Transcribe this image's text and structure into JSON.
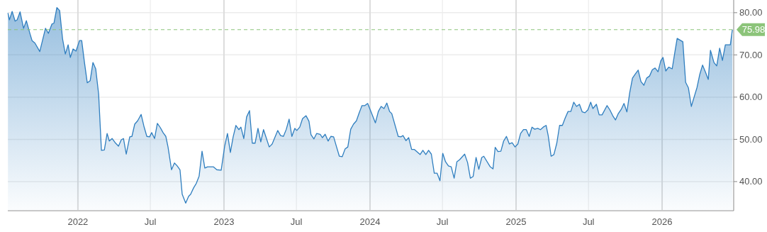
{
  "chart_data": {
    "type": "area",
    "series": [
      {
        "color": "#2f7ebf",
        "x": [
          2021.521,
          2021.531,
          2021.55,
          2021.57,
          2021.584,
          2021.604,
          2021.628,
          2021.647,
          2021.672,
          2021.686,
          2021.706,
          2021.739,
          2021.778,
          2021.798,
          2021.822,
          2021.836,
          2021.856,
          2021.875,
          2021.895,
          2021.914,
          2021.933,
          2021.948,
          2021.967,
          2021.987,
          2022.011,
          2022.026,
          2022.045,
          2022.064,
          2022.084,
          2022.103,
          2022.122,
          2022.142,
          2022.161,
          2022.181,
          2022.2,
          2022.215,
          2022.234,
          2022.258,
          2022.278,
          2022.297,
          2022.312,
          2022.331,
          2022.355,
          2022.37,
          2022.389,
          2022.409,
          2022.433,
          2022.452,
          2022.472,
          2022.491,
          2022.505,
          2022.525,
          2022.544,
          2022.564,
          2022.583,
          2022.602,
          2022.617,
          2022.641,
          2022.661,
          2022.68,
          2022.699,
          2022.714,
          2022.738,
          2022.758,
          2022.772,
          2022.792,
          2022.811,
          2022.83,
          2022.85,
          2022.869,
          2022.888,
          2022.927,
          2022.951,
          2022.981,
          2023.005,
          2023.024,
          2023.044,
          2023.063,
          2023.082,
          2023.102,
          2023.116,
          2023.136,
          2023.155,
          2023.175,
          2023.194,
          2023.213,
          2023.233,
          2023.252,
          2023.271,
          2023.31,
          2023.33,
          2023.368,
          2023.388,
          2023.407,
          2023.427,
          2023.446,
          2023.465,
          2023.485,
          2023.499,
          2023.519,
          2023.538,
          2023.562,
          2023.582,
          2023.596,
          2023.616,
          2023.635,
          2023.659,
          2023.674,
          2023.693,
          2023.713,
          2023.732,
          2023.751,
          2023.771,
          2023.79,
          2023.81,
          2023.829,
          2023.848,
          2023.868,
          2023.887,
          2023.907,
          2023.926,
          2023.945,
          2023.965,
          2023.984,
          2024.004,
          2024.037,
          2024.057,
          2024.076,
          2024.096,
          2024.115,
          2024.134,
          2024.149,
          2024.193,
          2024.212,
          2024.226,
          2024.246,
          2024.265,
          2024.285,
          2024.304,
          2024.343,
          2024.362,
          2024.382,
          2024.401,
          2024.42,
          2024.44,
          2024.459,
          2024.479,
          2024.498,
          2024.517,
          2024.537,
          2024.556,
          2024.576,
          2024.595,
          2024.614,
          2024.648,
          2024.668,
          2024.687,
          2024.706,
          2024.726,
          2024.745,
          2024.765,
          2024.779,
          2024.823,
          2024.842,
          2024.857,
          2024.876,
          2024.896,
          2024.915,
          2024.934,
          2024.954,
          2024.973,
          2024.993,
          2025.012,
          2025.031,
          2025.051,
          2025.07,
          2025.09,
          2025.109,
          2025.128,
          2025.148,
          2025.167,
          2025.186,
          2025.206,
          2025.22,
          2025.24,
          2025.259,
          2025.279,
          2025.298,
          2025.317,
          2025.337,
          2025.356,
          2025.375,
          2025.395,
          2025.414,
          2025.434,
          2025.453,
          2025.472,
          2025.492,
          2025.511,
          2025.526,
          2025.55,
          2025.569,
          2025.589,
          2025.623,
          2025.642,
          2025.662,
          2025.681,
          2025.7,
          2025.72,
          2025.739,
          2025.759,
          2025.778,
          2025.797,
          2025.817,
          2025.836,
          2025.855,
          2025.875,
          2025.894,
          2025.914,
          2025.933,
          2025.952,
          2025.972,
          2025.991,
          2026.006,
          2026.025,
          2026.045,
          2026.069,
          2026.088,
          2026.103,
          2026.142,
          2026.161,
          2026.18,
          2026.2,
          2026.219,
          2026.239,
          2026.258,
          2026.277,
          2026.297,
          2026.316,
          2026.331,
          2026.355,
          2026.374,
          2026.394,
          2026.413,
          2026.433,
          2026.467,
          2026.481
        ],
        "values": [
          79.9,
          78.3,
          80.3,
          78.0,
          78.3,
          80.2,
          76.3,
          78.1,
          75.0,
          73.4,
          72.8,
          70.8,
          76.3,
          75.1,
          77.3,
          77.5,
          81.2,
          80.5,
          73.8,
          70.2,
          72.4,
          69.4,
          71.4,
          70.9,
          73.4,
          73.4,
          68.2,
          63.4,
          63.9,
          68.2,
          66.7,
          60.7,
          47.4,
          47.5,
          51.4,
          49.6,
          50.2,
          49.1,
          48.4,
          49.9,
          50.2,
          46.5,
          50.6,
          50.7,
          53.6,
          54.4,
          55.9,
          53.1,
          50.7,
          50.6,
          51.6,
          50.2,
          53.8,
          52.8,
          51.6,
          50.7,
          48.2,
          42.8,
          44.4,
          43.7,
          42.8,
          37.0,
          34.9,
          36.5,
          37.0,
          38.5,
          39.6,
          41.3,
          47.2,
          43.2,
          43.5,
          43.5,
          42.8,
          42.7,
          48.4,
          51.4,
          46.9,
          50.6,
          53.3,
          52.3,
          52.9,
          50.2,
          55.3,
          56.8,
          49.1,
          49.1,
          52.6,
          49.4,
          52.3,
          48.2,
          48.9,
          52.1,
          50.9,
          50.7,
          52.4,
          54.8,
          50.7,
          52.6,
          52.1,
          52.9,
          54.9,
          55.6,
          54.3,
          51.1,
          50.1,
          51.4,
          51.2,
          50.4,
          51.2,
          49.6,
          50.7,
          50.6,
          48.2,
          46.0,
          45.9,
          47.7,
          48.2,
          52.4,
          53.6,
          54.4,
          56.3,
          58.0,
          58.0,
          58.5,
          56.8,
          53.9,
          56.6,
          57.8,
          57.3,
          58.6,
          56.6,
          56.1,
          50.7,
          50.6,
          50.9,
          49.7,
          50.4,
          47.6,
          47.6,
          46.4,
          47.4,
          46.4,
          47.4,
          46.5,
          42.0,
          42.0,
          40.2,
          46.7,
          44.7,
          43.7,
          43.5,
          40.8,
          44.7,
          45.2,
          46.5,
          44.5,
          40.8,
          41.2,
          45.7,
          42.9,
          45.7,
          46.0,
          43.5,
          43.0,
          48.1,
          47.1,
          47.2,
          49.6,
          50.7,
          48.9,
          49.2,
          48.2,
          48.9,
          51.4,
          52.3,
          52.3,
          50.7,
          52.9,
          52.4,
          52.6,
          52.3,
          52.9,
          53.3,
          50.9,
          46.0,
          46.4,
          49.1,
          53.3,
          53.3,
          55.1,
          56.6,
          56.6,
          58.8,
          57.8,
          58.3,
          56.5,
          56.3,
          57.0,
          58.8,
          57.3,
          58.3,
          55.8,
          55.8,
          58.0,
          57.0,
          55.6,
          54.6,
          56.1,
          57.1,
          58.5,
          56.5,
          61.0,
          64.5,
          65.5,
          66.4,
          63.7,
          62.8,
          64.5,
          65.0,
          66.5,
          66.9,
          66.0,
          68.6,
          69.4,
          66.2,
          67.1,
          66.7,
          70.8,
          73.9,
          73.1,
          63.5,
          62.2,
          57.8,
          60.0,
          62.3,
          65.4,
          67.6,
          65.9,
          64.2,
          71.1,
          68.2,
          67.4,
          71.6,
          68.7,
          72.4,
          72.4,
          75.98
        ]
      }
    ],
    "xlim": [
      2021.52,
      2026.49
    ],
    "xticks": [
      2022,
      {
        "value": 2022.496,
        "label": "Jul"
      },
      2023,
      {
        "value": 2023.496,
        "label": "Jul"
      },
      2024,
      {
        "value": 2024.496,
        "label": "Jul"
      },
      2025,
      {
        "value": 2025.496,
        "label": "Jul"
      },
      2026
    ],
    "ylim": [
      33.1,
      83.0
    ],
    "yticks": [
      {
        "value": 40,
        "label": "40.00"
      },
      {
        "value": 50,
        "label": "50.00"
      },
      {
        "value": 60,
        "label": "60.00"
      },
      {
        "value": 70,
        "label": "70.00"
      },
      {
        "value": 80,
        "label": "80.00"
      }
    ],
    "grid": true,
    "ref_lines": [
      {
        "axis": "y",
        "value": 75.98,
        "label": "75.98",
        "color": "#8cc47a",
        "line_style": "dashed"
      }
    ]
  }
}
